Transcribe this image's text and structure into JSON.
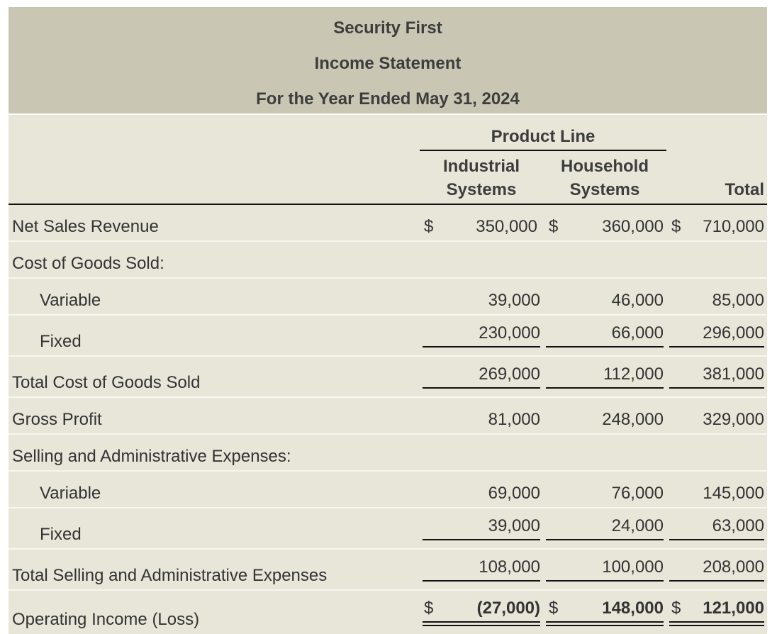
{
  "header": {
    "company": "Security First",
    "statement": "Income Statement",
    "period": "For the Year Ended May 31, 2024"
  },
  "columns": {
    "group": "Product Line",
    "industrial_l1": "Industrial",
    "industrial_l2": "Systems",
    "household_l1": "Household",
    "household_l2": "Systems",
    "total": "Total"
  },
  "currency": "$",
  "rows": [
    {
      "label": "Net Sales Revenue",
      "industrial": "350,000",
      "household": "360,000",
      "total": "710,000"
    },
    {
      "label": "Cost of Goods Sold:"
    },
    {
      "label": "Variable",
      "industrial": "39,000",
      "household": "46,000",
      "total": "85,000"
    },
    {
      "label": "Fixed",
      "industrial": "230,000",
      "household": "66,000",
      "total": "296,000"
    },
    {
      "label": "Total Cost of Goods Sold",
      "industrial": "269,000",
      "household": "112,000",
      "total": "381,000"
    },
    {
      "label": "Gross Profit",
      "industrial": "81,000",
      "household": "248,000",
      "total": "329,000"
    },
    {
      "label": "Selling and Administrative Expenses:"
    },
    {
      "label": "Variable",
      "industrial": "69,000",
      "household": "76,000",
      "total": "145,000"
    },
    {
      "label": "Fixed",
      "industrial": "39,000",
      "household": "24,000",
      "total": "63,000"
    },
    {
      "label": "Total Selling and Administrative Expenses",
      "industrial": "108,000",
      "household": "100,000",
      "total": "208,000"
    },
    {
      "label": "Operating Income (Loss)",
      "industrial": "(27,000)",
      "household": "148,000",
      "total": "121,000"
    }
  ]
}
